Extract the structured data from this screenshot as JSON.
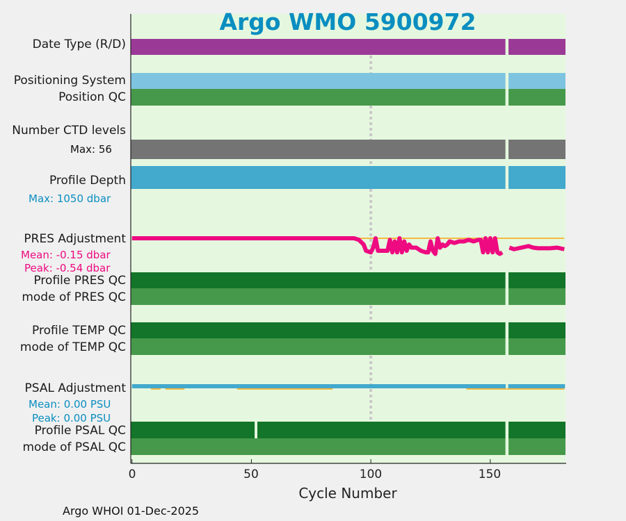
{
  "chart_data": {
    "type": "bar",
    "title": "Argo WMO 5900972",
    "xlabel": "Cycle Number",
    "xlim": [
      -0.5,
      181.5
    ],
    "xticks": [
      "0",
      "50",
      "100",
      "150"
    ],
    "xtick_values": [
      0,
      50,
      100,
      150
    ],
    "reference_cycle": 100,
    "missing_cycles": [
      157
    ],
    "colors": {
      "background": "#E5F8DF",
      "date_type": "#9B3A96",
      "positioning": "#7EC4E0",
      "qc_mode": "#46994A",
      "qc_profile": "#137529",
      "ctd_levels": "#747474",
      "depth": "#43A9CD",
      "pres": "#EE0A80",
      "psal": "#43A9CD",
      "reference": "#F5B942",
      "title": "#0A8EC0"
    },
    "rows": {
      "date_type": "Date Type (R/D)",
      "positioning_system": "Positioning System",
      "position_qc": "Position QC",
      "ctd_levels": "Number CTD levels",
      "ctd_max": "Max: 56",
      "profile_depth": "Profile Depth",
      "depth_max": "Max: 1050 dbar",
      "pres_adj": "PRES Adjustment",
      "pres_mean": "Mean: -0.15 dbar",
      "pres_peak": "Peak: -0.54 dbar",
      "pres_qc": "Profile PRES QC",
      "pres_mode": "mode of PRES QC",
      "temp_qc": "Profile TEMP QC",
      "temp_mode": "mode of TEMP QC",
      "psal_adj": "PSAL Adjustment",
      "psal_mean": "Mean: 0.00 PSU",
      "psal_peak": "Peak: 0.00 PSU",
      "psal_qc": "Profile PSAL QC",
      "psal_mode": "mode of PSAL QC"
    },
    "psal_qc_missing": [
      52
    ],
    "pres_adjustment_dbar": [
      [
        0,
        0
      ],
      [
        93,
        0
      ],
      [
        95,
        -0.05
      ],
      [
        97,
        -0.2
      ],
      [
        98,
        -0.4
      ],
      [
        100,
        -0.45
      ],
      [
        101,
        -0.3
      ],
      [
        102,
        0
      ],
      [
        103,
        -0.4
      ],
      [
        105,
        -0.4
      ],
      [
        107,
        -0.4
      ],
      [
        108,
        -0.05
      ],
      [
        109,
        -0.45
      ],
      [
        110,
        -0.1
      ],
      [
        111,
        -0.45
      ],
      [
        112,
        0
      ],
      [
        113,
        -0.45
      ],
      [
        114,
        -0.1
      ],
      [
        115,
        -0.4
      ],
      [
        116,
        -0.2
      ],
      [
        117,
        -0.3
      ],
      [
        119,
        -0.3
      ],
      [
        121,
        -0.4
      ],
      [
        123,
        -0.45
      ],
      [
        124,
        -0.45
      ],
      [
        125,
        -0.1
      ],
      [
        126,
        -0.4
      ],
      [
        127,
        -0.5
      ],
      [
        128,
        0
      ],
      [
        129,
        -0.3
      ],
      [
        130,
        -0.2
      ],
      [
        131,
        -0.25
      ],
      [
        132,
        -0.2
      ],
      [
        133,
        -0.1
      ],
      [
        135,
        -0.15
      ],
      [
        137,
        -0.1
      ],
      [
        139,
        -0.1
      ],
      [
        141,
        -0.05
      ],
      [
        143,
        -0.1
      ],
      [
        145,
        -0.05
      ],
      [
        146,
        -0.05
      ],
      [
        147,
        -0.45
      ],
      [
        148,
        0
      ],
      [
        149,
        -0.45
      ],
      [
        150,
        0
      ],
      [
        151,
        -0.45
      ],
      [
        152,
        0
      ],
      [
        153,
        -0.45
      ],
      [
        154,
        -0.5
      ],
      [
        155,
        -0.45
      ],
      null,
      [
        158,
        -0.3
      ],
      [
        160,
        -0.35
      ],
      [
        163,
        -0.3
      ],
      [
        166,
        -0.25
      ],
      [
        168,
        -0.3
      ],
      [
        170,
        -0.32
      ],
      [
        175,
        -0.32
      ],
      [
        178,
        -0.3
      ],
      [
        181,
        -0.35
      ]
    ],
    "pres_reference_range": [
      95,
      181
    ],
    "psal_adjustment_psu": 0,
    "psal_reference_ranges": [
      [
        8,
        12
      ],
      [
        14,
        22
      ],
      [
        44,
        84
      ],
      [
        140,
        186
      ]
    ]
  },
  "footer": "Argo WHOI 01-Dec-2025"
}
